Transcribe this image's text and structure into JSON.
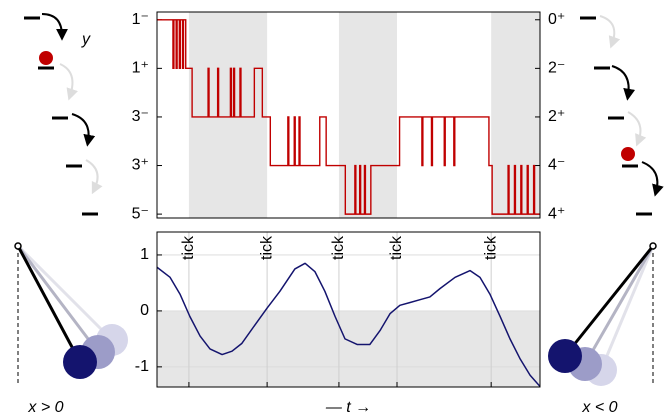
{
  "labels": {
    "y": "y",
    "x_pos": "x > 0",
    "x_neg": "x < 0"
  },
  "chart_data": [
    {
      "type": "step",
      "color": "#c00000",
      "x": [
        0,
        0.5,
        0.53,
        0.6,
        0.63,
        0.7,
        0.73,
        0.8,
        0.83,
        0.9,
        1.1,
        1.6,
        1.63,
        1.9,
        1.93,
        2.3,
        2.33,
        2.4,
        2.43,
        2.6,
        2.63,
        3.05,
        3.3,
        3.55,
        4.1,
        4.13,
        4.3,
        4.33,
        4.45,
        4.48,
        5.1,
        5.3,
        5.9,
        6.2,
        6.23,
        6.35,
        6.38,
        6.5,
        6.53,
        6.7,
        7.6,
        8.3,
        8.33,
        8.6,
        8.63,
        9.0,
        9.03,
        9.3,
        9.33,
        10.4,
        10.5,
        11.0,
        11.03,
        11.2,
        11.23,
        11.4,
        11.43,
        11.6,
        11.63,
        11.8,
        11.83,
        12
      ],
      "values": [
        0,
        1,
        0,
        1,
        0,
        1,
        0,
        1,
        0,
        1,
        2,
        1,
        2,
        1,
        2,
        1,
        2,
        1,
        2,
        1,
        2,
        1,
        2,
        3,
        2,
        3,
        2,
        3,
        2,
        3,
        2,
        3,
        4,
        3,
        4,
        3,
        4,
        3,
        4,
        3,
        2,
        3,
        2,
        3,
        2,
        3,
        2,
        3,
        2,
        3,
        4,
        3,
        4,
        3,
        4,
        3,
        4,
        3,
        4,
        3,
        4,
        4
      ],
      "xlim": [
        0,
        12
      ],
      "ylim": [
        4.08,
        -0.16
      ],
      "y2lim": [
        4.08,
        -0.16
      ],
      "yticks": [
        {
          "value": 0,
          "label": "1⁻"
        },
        {
          "value": 1,
          "label": "1⁺"
        },
        {
          "value": 2,
          "label": "3⁻"
        },
        {
          "value": 3,
          "label": "3⁺"
        },
        {
          "value": 4,
          "label": "5⁻"
        }
      ],
      "y2ticks": [
        {
          "value": 0,
          "label": "0⁺"
        },
        {
          "value": 1,
          "label": "2⁻"
        },
        {
          "value": 2,
          "label": "2⁺"
        },
        {
          "value": 3,
          "label": "4⁻"
        },
        {
          "value": 4,
          "label": "4⁺"
        }
      ],
      "shaded_x": [
        [
          1.0,
          3.45
        ],
        [
          5.7,
          7.52
        ],
        [
          10.47,
          12
        ]
      ]
    },
    {
      "type": "line",
      "color": "#14146e",
      "x": [
        0,
        0.41,
        0.72,
        1.03,
        1.35,
        1.66,
        2.04,
        2.35,
        2.66,
        3.07,
        3.45,
        3.85,
        4.32,
        4.64,
        4.95,
        5.26,
        5.58,
        5.89,
        6.27,
        6.67,
        6.99,
        7.3,
        7.61,
        7.93,
        8.24,
        8.55,
        8.87,
        9.34,
        9.81,
        10.12,
        10.43,
        10.75,
        11.06,
        11.37,
        11.69,
        12
      ],
      "values": [
        0.78,
        0.6,
        0.3,
        -0.1,
        -0.45,
        -0.68,
        -0.78,
        -0.72,
        -0.58,
        -0.25,
        0.05,
        0.35,
        0.75,
        0.85,
        0.7,
        0.35,
        -0.1,
        -0.5,
        -0.6,
        -0.6,
        -0.35,
        -0.05,
        0.1,
        0.15,
        0.2,
        0.25,
        0.4,
        0.6,
        0.72,
        0.6,
        0.3,
        -0.1,
        -0.5,
        -0.85,
        -1.15,
        -1.35
      ],
      "xlim": [
        0,
        12
      ],
      "ylim": [
        -1.36,
        1.41
      ],
      "yticks": [
        -1,
        0,
        1
      ],
      "grid": true,
      "shaded_y": [
        [
          -1.36,
          0
        ]
      ],
      "annotations": [
        {
          "x": 1.0,
          "text": "tick"
        },
        {
          "x": 3.45,
          "text": "tick"
        },
        {
          "x": 5.7,
          "text": "tick"
        },
        {
          "x": 7.52,
          "text": "tick"
        },
        {
          "x": 10.47,
          "text": "tick"
        }
      ],
      "xlabel": "— t →"
    }
  ]
}
